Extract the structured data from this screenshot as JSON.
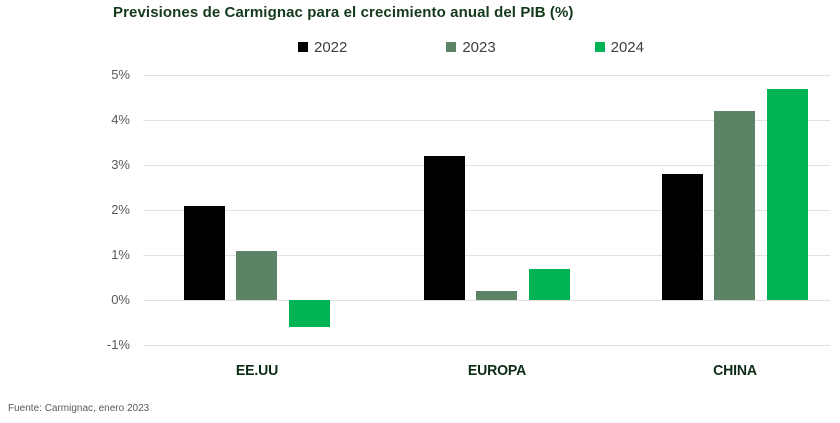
{
  "title": "Previsiones de Carmignac para el crecimiento anual del PIB (%)",
  "source": "Fuente: Carmignac, enero 2023",
  "colors": {
    "title_text": "#15391b",
    "category_text": "#0d2b15",
    "axis_text": "#595959",
    "legend_text": "#404040",
    "gridline": "#e2e2e2",
    "series_2022": "#000000",
    "series_2023": "#5d8367",
    "series_2024": "#00b456"
  },
  "legend": [
    {
      "label": "2022",
      "color": "#000000"
    },
    {
      "label": "2023",
      "color": "#5d8367"
    },
    {
      "label": "2024",
      "color": "#00b456"
    }
  ],
  "chart_data": {
    "type": "bar",
    "title": "Previsiones de Carmignac para el crecimiento anual del PIB (%)",
    "categories": [
      "EE.UU",
      "EUROPA",
      "CHINA"
    ],
    "series": [
      {
        "name": "2022",
        "color": "#000000",
        "values": [
          2.1,
          3.2,
          2.8
        ]
      },
      {
        "name": "2023",
        "color": "#5d8367",
        "values": [
          1.1,
          0.2,
          4.2
        ]
      },
      {
        "name": "2024",
        "color": "#00b456",
        "values": [
          -0.6,
          0.7,
          4.7
        ]
      }
    ],
    "xlabel": "",
    "ylabel": "",
    "ylim": [
      -1,
      5
    ],
    "yticks": [
      5,
      4,
      3,
      2,
      1,
      0,
      -1
    ],
    "ytick_labels": [
      "5%",
      "4%",
      "3%",
      "2%",
      "1%",
      "0%",
      "-1%"
    ],
    "grid": true,
    "legend_position": "top-center"
  }
}
